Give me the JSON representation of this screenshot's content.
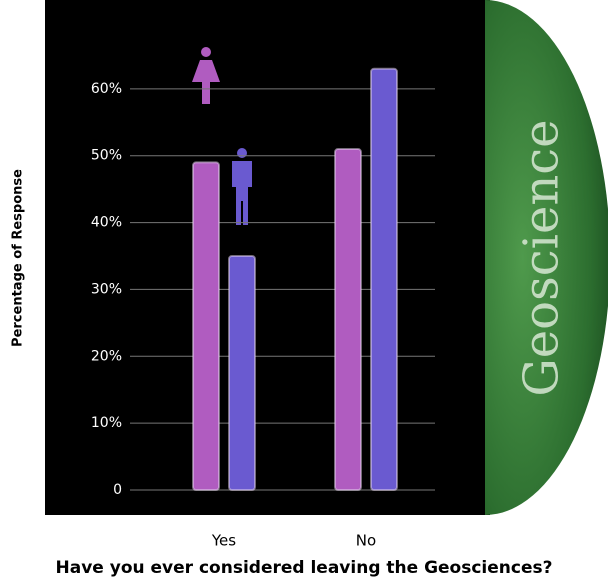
{
  "chart_data": {
    "type": "bar",
    "title": "Have you ever considered leaving the Geosciences?",
    "y_label": "Percentage of Response",
    "annotation": "Geoscience",
    "categories": [
      "Yes",
      "No"
    ],
    "series": [
      {
        "color": "#b05cc0",
        "values": [
          49,
          51
        ]
      },
      {
        "color": "#6a5ad0",
        "values": [
          35,
          63
        ]
      }
    ],
    "ylim": [
      0,
      70
    ],
    "yticks": [
      0,
      {
        "value": 10,
        "label": "10%"
      },
      {
        "value": 20,
        "label": "20%"
      },
      {
        "value": 30,
        "label": "30%"
      },
      {
        "value": 40,
        "label": "40%"
      },
      {
        "value": 50,
        "label": "50%"
      },
      {
        "value": 60,
        "label": "60%"
      }
    ],
    "grid": true
  }
}
